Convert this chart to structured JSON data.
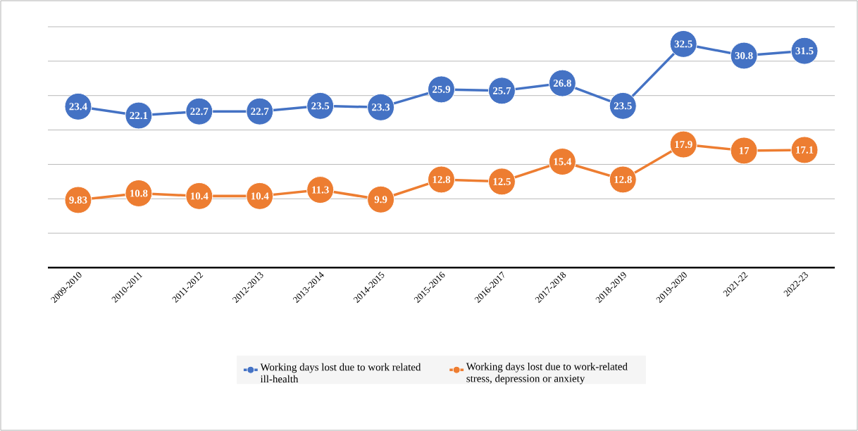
{
  "chart_data": {
    "type": "line",
    "categories": [
      "2009-2010",
      "2010-2011",
      "2011-2012",
      "2012-2013",
      "2013-2014",
      "2014-2015",
      "2015-2016",
      "2016-2017",
      "2017-2018",
      "2018-2019",
      "2019-2020",
      "2021-22",
      "2022-23"
    ],
    "series": [
      {
        "name": "Working days lost due to work related ill-health",
        "color": "#4472c4",
        "values": [
          23.4,
          22.1,
          22.7,
          22.7,
          23.5,
          23.3,
          25.9,
          25.7,
          26.8,
          23.5,
          32.5,
          30.8,
          31.5
        ]
      },
      {
        "name": "Working days lost due to work-related stress, depression or anxiety",
        "color": "#ed7d31",
        "values": [
          9.83,
          10.8,
          10.4,
          10.4,
          11.3,
          9.9,
          12.8,
          12.5,
          15.4,
          12.8,
          17.9,
          17,
          17.1
        ]
      }
    ],
    "ylim": [
      0,
      35
    ],
    "tick_labels": "x",
    "grid": "y",
    "legend": "bottom",
    "marker": "circle",
    "line_style": "solid",
    "data_labels": true
  }
}
